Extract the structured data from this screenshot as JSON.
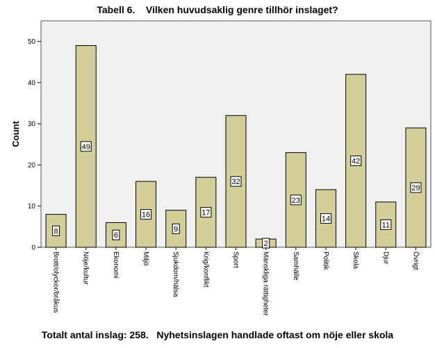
{
  "title": "Tabell 6.    Vilken huvudsaklig genre tillhör inslaget?",
  "footer": "Totalt antal inslag: 258.   Nyhetsinslagen handlade oftast om nöje eller skola",
  "chart_data": {
    "type": "bar",
    "ylabel": "Count",
    "xlabel": "",
    "ylim": [
      0,
      55
    ],
    "yticks": [
      0,
      10,
      20,
      30,
      40,
      50
    ],
    "categories": [
      "Brott/olyckor/bråkus",
      "Nöje/kultur",
      "Ekonomi",
      "Miljö",
      "Sjukdom/hälsa",
      "Krig/konflikt",
      "Sport",
      "Mänskliga rättigheter",
      "Samhälle",
      "Politik",
      "Skola",
      "Djur",
      "Övrigt"
    ],
    "values": [
      8,
      49,
      6,
      16,
      9,
      17,
      32,
      2,
      23,
      14,
      42,
      11,
      29
    ],
    "data_labels": true,
    "grid": false,
    "colors": {
      "bar": "#d3ce9a",
      "plot_bg": "#f0f0f0",
      "stroke": "#000000"
    }
  }
}
